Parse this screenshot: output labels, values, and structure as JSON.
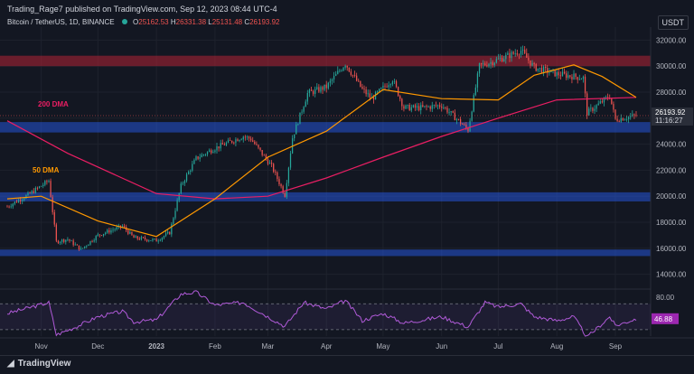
{
  "header": {
    "publisher": "Trading_Rage7 published on TradingView.com, Sep 12, 2023 08:44 UTC-4",
    "symbol": "Bitcoin / TetherUS, 1D, BINANCE",
    "ohlc": {
      "o_label": "O",
      "o": "25162.53",
      "h_label": "H",
      "h": "26331.38",
      "l_label": "L",
      "l": "25131.48",
      "c_label": "C",
      "c": "26193.92"
    },
    "currency": "USDT"
  },
  "footer": {
    "brand": "TradingView"
  },
  "chart_data": [
    {
      "type": "candlestick",
      "title": "Bitcoin / TetherUS, 1D, BINANCE",
      "x_tick_labels": [
        "Nov",
        "Dec",
        "2023",
        "Feb",
        "Mar",
        "Apr",
        "May",
        "Jun",
        "Jul",
        "Aug",
        "Sep"
      ],
      "x_tick_dates": [
        "2022-11-01",
        "2022-12-01",
        "2023-01-01",
        "2023-02-01",
        "2023-03-01",
        "2023-04-01",
        "2023-05-01",
        "2023-06-01",
        "2023-07-01",
        "2023-08-01",
        "2023-09-01"
      ],
      "x_range": [
        "2022-10-14",
        "2023-09-12"
      ],
      "y_tick_labels": [
        "32000.00",
        "30000.00",
        "28000.00",
        "26000.00",
        "24000.00",
        "22000.00",
        "20000.00",
        "18000.00",
        "16000.00",
        "14000.00"
      ],
      "ylim": [
        13000,
        33000
      ],
      "price_points": [
        [
          "2022-10-14",
          19200
        ],
        [
          "2022-10-25",
          20100
        ],
        [
          "2022-11-05",
          21200
        ],
        [
          "2022-11-09",
          16500
        ],
        [
          "2022-11-15",
          16700
        ],
        [
          "2022-11-22",
          15900
        ],
        [
          "2022-12-01",
          17000
        ],
        [
          "2022-12-14",
          17700
        ],
        [
          "2022-12-20",
          16800
        ],
        [
          "2023-01-01",
          16600
        ],
        [
          "2023-01-08",
          17200
        ],
        [
          "2023-01-14",
          20800
        ],
        [
          "2023-01-22",
          22900
        ],
        [
          "2023-02-01",
          23700
        ],
        [
          "2023-02-16",
          24600
        ],
        [
          "2023-02-20",
          24400
        ],
        [
          "2023-03-03",
          22300
        ],
        [
          "2023-03-10",
          20100
        ],
        [
          "2023-03-14",
          24500
        ],
        [
          "2023-03-22",
          27900
        ],
        [
          "2023-04-01",
          28400
        ],
        [
          "2023-04-11",
          30200
        ],
        [
          "2023-04-20",
          28200
        ],
        [
          "2023-04-25",
          27500
        ],
        [
          "2023-05-06",
          29000
        ],
        [
          "2023-05-12",
          26800
        ],
        [
          "2023-05-22",
          26800
        ],
        [
          "2023-06-01",
          27000
        ],
        [
          "2023-06-10",
          25800
        ],
        [
          "2023-06-15",
          25100
        ],
        [
          "2023-06-21",
          30000
        ],
        [
          "2023-07-01",
          30500
        ],
        [
          "2023-07-13",
          31200
        ],
        [
          "2023-07-20",
          29900
        ],
        [
          "2023-08-01",
          29400
        ],
        [
          "2023-08-15",
          29100
        ],
        [
          "2023-08-17",
          26400
        ],
        [
          "2023-08-29",
          27700
        ],
        [
          "2023-09-01",
          25900
        ],
        [
          "2023-09-12",
          26200
        ]
      ],
      "current_price": "26193.92",
      "current_countdown": "11:16:27",
      "support_zones": [
        [
          30000,
          30800
        ],
        [
          24900,
          25700
        ],
        [
          19600,
          20300
        ],
        [
          15400,
          15900
        ]
      ],
      "ma_200": {
        "label": "200 DMA",
        "color": "#e91e63",
        "points": [
          [
            "2022-10-14",
            25800
          ],
          [
            "2022-11-15",
            23300
          ],
          [
            "2023-01-01",
            20200
          ],
          [
            "2023-02-01",
            19800
          ],
          [
            "2023-03-01",
            20000
          ],
          [
            "2023-04-01",
            21400
          ],
          [
            "2023-05-01",
            23000
          ],
          [
            "2023-06-01",
            24600
          ],
          [
            "2023-07-01",
            26000
          ],
          [
            "2023-08-01",
            27400
          ],
          [
            "2023-09-12",
            27600
          ]
        ]
      },
      "ma_50": {
        "label": "50 DMA",
        "color": "#ff9800",
        "points": [
          [
            "2022-10-14",
            19800
          ],
          [
            "2022-11-01",
            20000
          ],
          [
            "2022-12-01",
            18100
          ],
          [
            "2023-01-01",
            16900
          ],
          [
            "2023-02-01",
            19800
          ],
          [
            "2023-03-01",
            23000
          ],
          [
            "2023-04-01",
            25000
          ],
          [
            "2023-05-01",
            28200
          ],
          [
            "2023-06-01",
            27500
          ],
          [
            "2023-07-01",
            27400
          ],
          [
            "2023-07-20",
            29300
          ],
          [
            "2023-08-10",
            30100
          ],
          [
            "2023-08-25",
            29200
          ],
          [
            "2023-09-12",
            27600
          ]
        ]
      }
    },
    {
      "type": "line",
      "title": "RSI",
      "y_tick_labels": [
        "80.00",
        "46.88"
      ],
      "current_value": "46.88",
      "ylim": [
        20,
        90
      ],
      "bands": [
        70,
        30
      ],
      "color": "#b05ad8",
      "points": [
        [
          "2022-10-14",
          55
        ],
        [
          "2022-11-05",
          72
        ],
        [
          "2022-11-09",
          22
        ],
        [
          "2022-11-20",
          35
        ],
        [
          "2022-12-01",
          50
        ],
        [
          "2022-12-14",
          58
        ],
        [
          "2022-12-20",
          42
        ],
        [
          "2023-01-01",
          45
        ],
        [
          "2023-01-14",
          85
        ],
        [
          "2023-01-22",
          88
        ],
        [
          "2023-02-01",
          68
        ],
        [
          "2023-02-16",
          72
        ],
        [
          "2023-03-10",
          35
        ],
        [
          "2023-03-20",
          72
        ],
        [
          "2023-04-01",
          62
        ],
        [
          "2023-04-11",
          75
        ],
        [
          "2023-04-20",
          44
        ],
        [
          "2023-05-01",
          55
        ],
        [
          "2023-05-12",
          40
        ],
        [
          "2023-06-01",
          50
        ],
        [
          "2023-06-15",
          34
        ],
        [
          "2023-06-24",
          72
        ],
        [
          "2023-07-01",
          65
        ],
        [
          "2023-07-13",
          70
        ],
        [
          "2023-07-20",
          50
        ],
        [
          "2023-08-01",
          44
        ],
        [
          "2023-08-10",
          50
        ],
        [
          "2023-08-17",
          18
        ],
        [
          "2023-08-29",
          50
        ],
        [
          "2023-09-01",
          36
        ],
        [
          "2023-09-12",
          46.88
        ]
      ]
    }
  ]
}
